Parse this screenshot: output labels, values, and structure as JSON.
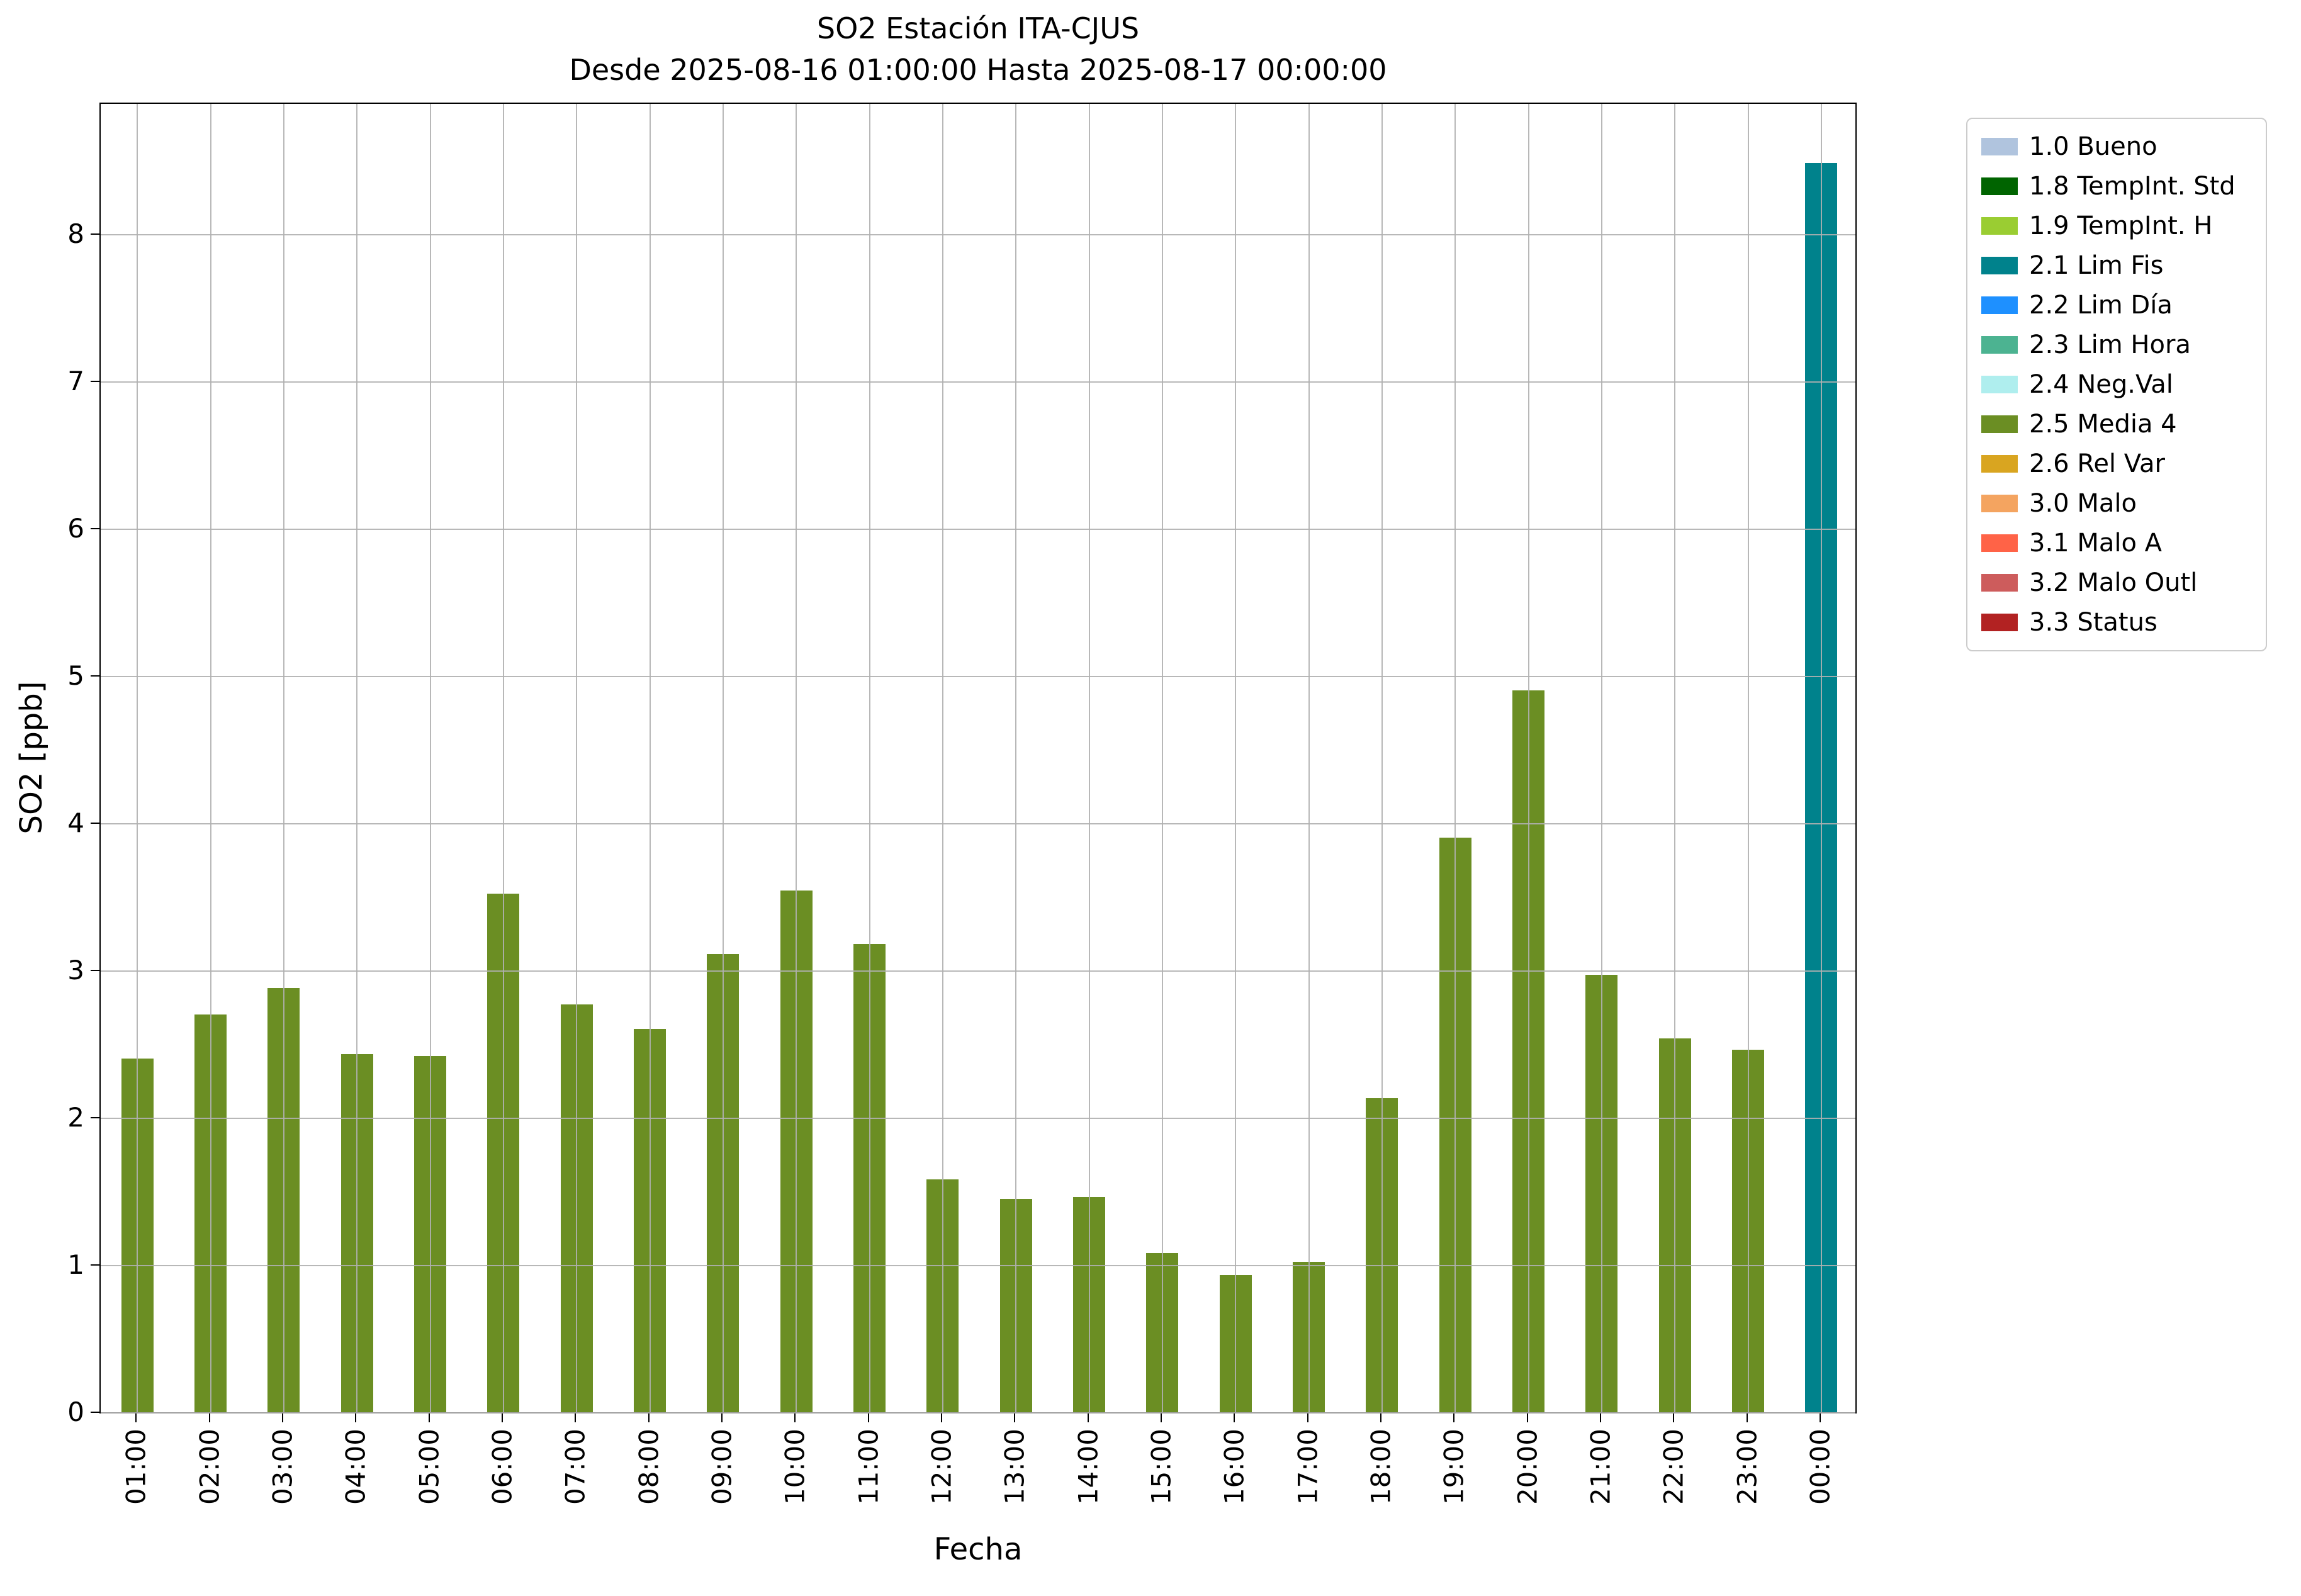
{
  "chart_data": {
    "type": "bar",
    "title": "SO2 Estación ITA-CJUS",
    "subtitle": "Desde 2025-08-16 01:00:00 Hasta 2025-08-17 00:00:00",
    "xlabel": "Fecha",
    "ylabel": "SO2 [ppb]",
    "ylim": [
      0,
      8.9
    ],
    "yticks": [
      0,
      1,
      2,
      3,
      4,
      5,
      6,
      7,
      8
    ],
    "grid": true,
    "legend_position": "outside-upper-right",
    "categories": [
      "01:00",
      "02:00",
      "03:00",
      "04:00",
      "05:00",
      "06:00",
      "07:00",
      "08:00",
      "09:00",
      "10:00",
      "11:00",
      "12:00",
      "13:00",
      "14:00",
      "15:00",
      "16:00",
      "17:00",
      "18:00",
      "19:00",
      "20:00",
      "21:00",
      "22:00",
      "23:00",
      "00:00"
    ],
    "series": [
      {
        "name": "SO2",
        "values": [
          2.4,
          2.7,
          2.88,
          2.43,
          2.42,
          3.52,
          2.77,
          2.6,
          3.11,
          3.54,
          3.18,
          1.58,
          1.45,
          1.46,
          1.08,
          0.93,
          1.02,
          2.13,
          3.9,
          4.9,
          2.97,
          2.54,
          2.46,
          8.48
        ],
        "point_keys": [
          "2.5 Media 4",
          "2.5 Media 4",
          "2.5 Media 4",
          "2.5 Media 4",
          "2.5 Media 4",
          "2.5 Media 4",
          "2.5 Media 4",
          "2.5 Media 4",
          "2.5 Media 4",
          "2.5 Media 4",
          "2.5 Media 4",
          "2.5 Media 4",
          "2.5 Media 4",
          "2.5 Media 4",
          "2.5 Media 4",
          "2.5 Media 4",
          "2.5 Media 4",
          "2.5 Media 4",
          "2.5 Media 4",
          "2.5 Media 4",
          "2.5 Media 4",
          "2.5 Media 4",
          "2.5 Media 4",
          "2.1 Lim Fis"
        ]
      }
    ],
    "legend": [
      {
        "label": "1.0 Bueno",
        "color": "#b0c4de"
      },
      {
        "label": "1.8 TempInt. Std",
        "color": "#006400"
      },
      {
        "label": "1.9 TempInt. H",
        "color": "#9acd32"
      },
      {
        "label": "2.1 Lim Fis",
        "color": "#00828c"
      },
      {
        "label": "2.2 Lim Día",
        "color": "#1e90ff"
      },
      {
        "label": "2.3 Lim Hora",
        "color": "#4cb391"
      },
      {
        "label": "2.4 Neg.Val",
        "color": "#afeeee"
      },
      {
        "label": "2.5 Media 4",
        "color": "#6b8e23"
      },
      {
        "label": "2.6 Rel Var",
        "color": "#d9a520"
      },
      {
        "label": "3.0 Malo",
        "color": "#f4a460"
      },
      {
        "label": "3.1 Malo A",
        "color": "#ff6347"
      },
      {
        "label": "3.2 Malo Outl",
        "color": "#cd5c5c"
      },
      {
        "label": "3.3 Status",
        "color": "#b22222"
      }
    ]
  }
}
